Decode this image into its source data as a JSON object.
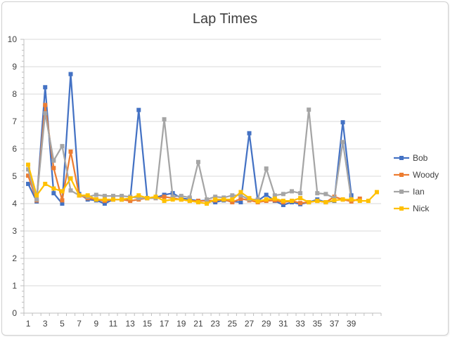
{
  "chart_data": {
    "type": "line",
    "title": "Lap Times",
    "xlabel": "",
    "ylabel": "",
    "ylim": [
      0,
      10
    ],
    "yticks": [
      0,
      1,
      2,
      3,
      4,
      5,
      6,
      7,
      8,
      9,
      10
    ],
    "x": [
      1,
      2,
      3,
      4,
      5,
      6,
      7,
      8,
      9,
      10,
      11,
      12,
      13,
      14,
      15,
      16,
      17,
      18,
      19,
      20,
      21,
      22,
      23,
      24,
      25,
      26,
      27,
      28,
      29,
      30,
      31,
      32,
      33,
      34,
      35,
      36,
      37,
      38,
      39,
      40,
      41,
      42
    ],
    "x_tick_labels": [
      "1",
      "3",
      "5",
      "7",
      "9",
      "11",
      "13",
      "15",
      "17",
      "19",
      "21",
      "23",
      "25",
      "27",
      "29",
      "31",
      "33",
      "35",
      "37",
      "39"
    ],
    "grid": true,
    "legend_position": "right",
    "series": [
      {
        "name": "Bob",
        "color": "#4472C4",
        "values": [
          4.72,
          4.08,
          8.25,
          4.38,
          4.0,
          8.73,
          4.35,
          4.15,
          4.12,
          4.0,
          4.15,
          4.15,
          4.15,
          7.42,
          4.2,
          4.22,
          4.32,
          4.38,
          4.2,
          4.15,
          4.1,
          4.12,
          4.05,
          4.12,
          4.08,
          4.05,
          6.57,
          4.1,
          4.32,
          4.1,
          3.95,
          4.05,
          3.98,
          4.05,
          4.15,
          4.05,
          4.1,
          6.97,
          4.3,
          null,
          null,
          null
        ]
      },
      {
        "name": "Woody",
        "color": "#ED7D31",
        "values": [
          5.02,
          4.12,
          7.6,
          5.3,
          4.12,
          5.9,
          4.3,
          4.2,
          4.15,
          4.1,
          4.15,
          4.15,
          4.1,
          4.15,
          4.2,
          4.2,
          4.25,
          4.2,
          4.15,
          4.1,
          4.1,
          4.1,
          4.12,
          4.15,
          4.05,
          4.18,
          4.12,
          4.05,
          4.1,
          4.12,
          4.05,
          4.1,
          4.02,
          4.05,
          4.1,
          4.05,
          4.25,
          4.15,
          4.08,
          4.18,
          null,
          null
        ]
      },
      {
        "name": "Ian",
        "color": "#A5A5A5",
        "values": [
          5.25,
          4.15,
          7.3,
          5.57,
          6.1,
          4.48,
          4.3,
          4.25,
          4.32,
          4.28,
          4.28,
          4.28,
          4.25,
          4.2,
          4.2,
          4.2,
          7.08,
          4.25,
          4.28,
          4.22,
          5.52,
          4.15,
          4.25,
          4.22,
          4.3,
          4.3,
          4.15,
          4.15,
          5.28,
          4.3,
          4.35,
          4.45,
          4.38,
          7.43,
          4.38,
          4.35,
          4.2,
          6.25,
          4.15,
          null,
          null,
          null
        ]
      },
      {
        "name": "Nick",
        "color": "#FFC000",
        "values": [
          5.42,
          4.3,
          4.72,
          4.55,
          4.45,
          4.92,
          4.3,
          4.3,
          4.15,
          4.15,
          4.15,
          4.15,
          4.2,
          4.3,
          4.2,
          4.25,
          4.1,
          4.15,
          4.15,
          4.1,
          4.05,
          4.0,
          4.15,
          4.15,
          4.15,
          4.42,
          4.2,
          4.08,
          4.15,
          4.18,
          4.1,
          4.1,
          4.2,
          4.05,
          4.1,
          4.05,
          4.12,
          4.15,
          4.15,
          4.1,
          4.1,
          4.42
        ]
      }
    ]
  }
}
